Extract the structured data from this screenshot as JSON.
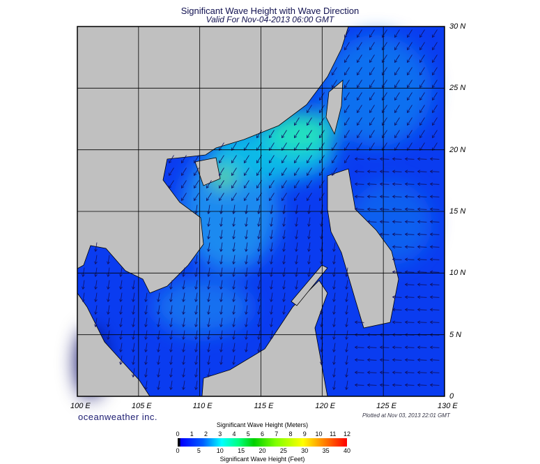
{
  "title": "Significant Wave Height with Wave Direction",
  "subtitle": "Valid For Nov-04-2013 06:00 GMT",
  "brand": "oceanweather inc.",
  "plotted": "Plotted at Nov 03, 2013 22:01 GMT",
  "lon_labels": [
    "100 E",
    "105 E",
    "110 E",
    "115 E",
    "120 E",
    "125 E",
    "130 E"
  ],
  "lat_labels": [
    "30 N",
    "25 N",
    "20 N",
    "15 N",
    "10 N",
    "5 N",
    "0"
  ],
  "colorbar": {
    "meters_title": "Significant Wave Height (Meters)",
    "meters_ticks": [
      "0",
      "1",
      "2",
      "3",
      "4",
      "5",
      "6",
      "7",
      "8",
      "9",
      "10",
      "11",
      "12"
    ],
    "feet_title": "Significant Wave Height (Feet)",
    "feet_ticks": [
      "0",
      "5",
      "10",
      "15",
      "20",
      "25",
      "30",
      "35",
      "40"
    ]
  },
  "colors": {
    "land": "#c0c0c0",
    "ocean_low": "#0a3cf0",
    "ocean_mid": "#1090f0",
    "ocean_high": "#20e0c0",
    "arrow": "#101060"
  }
}
